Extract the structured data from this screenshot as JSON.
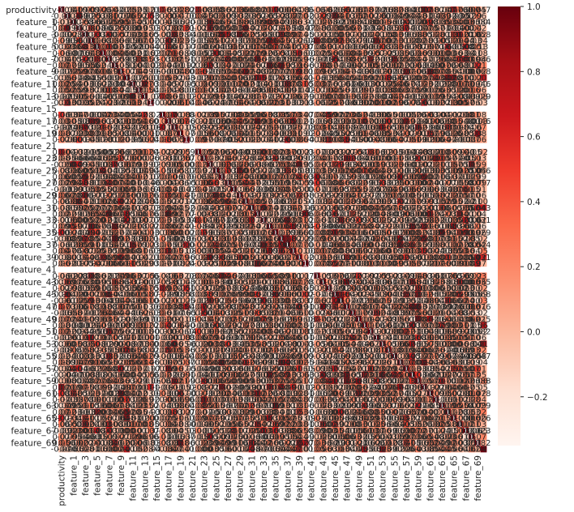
{
  "chart_data": {
    "type": "heatmap",
    "title": "",
    "xlabel": "",
    "ylabel": "",
    "row_labels": [
      "productivity",
      "0",
      "feature_1",
      "2",
      "feature_3",
      "4",
      "feature_5",
      "6",
      "feature_7",
      "8",
      "feature_9",
      "10",
      "feature_11",
      "12",
      "feature_13",
      "14",
      "feature_15",
      "16",
      "feature_17",
      "18",
      "feature_19",
      "20",
      "feature_21",
      "22",
      "feature_23",
      "24",
      "feature_25",
      "26",
      "feature_27",
      "28",
      "feature_29",
      "30",
      "feature_31",
      "32",
      "feature_33",
      "34",
      "feature_35",
      "36",
      "feature_37",
      "38",
      "feature_39",
      "40",
      "feature_41",
      "42",
      "feature_43",
      "44",
      "feature_45",
      "46",
      "feature_47",
      "48",
      "feature_49",
      "50",
      "feature_51",
      "52",
      "feature_53",
      "54",
      "feature_55",
      "56",
      "feature_57",
      "58",
      "feature_59",
      "60",
      "feature_61",
      "62",
      "feature_63",
      "64",
      "feature_65",
      "66",
      "feature_67",
      "68",
      "feature_69",
      "70"
    ],
    "x_tick_labels": [
      "productivity",
      "feature_1",
      "feature_3",
      "feature_5",
      "feature_7",
      "feature_9",
      "feature_11",
      "feature_13",
      "feature_15",
      "feature_17",
      "feature_19",
      "feature_21",
      "feature_23",
      "feature_25",
      "feature_27",
      "feature_29",
      "feature_31",
      "feature_33",
      "feature_35",
      "feature_37",
      "feature_39",
      "feature_41",
      "feature_43",
      "feature_45",
      "feature_47",
      "feature_49",
      "feature_51",
      "feature_53",
      "feature_55",
      "feature_57",
      "feature_59",
      "feature_61",
      "feature_63",
      "feature_65",
      "feature_67",
      "feature_69"
    ],
    "y_tick_labels": [
      "productivity",
      "feature_1",
      "feature_3",
      "feature_5",
      "feature_7",
      "feature_9",
      "feature_11",
      "feature_13",
      "feature_15",
      "feature_17",
      "feature_19",
      "feature_21",
      "feature_23",
      "feature_25",
      "feature_27",
      "feature_29",
      "feature_31",
      "feature_33",
      "feature_35",
      "feature_37",
      "feature_39",
      "feature_41",
      "feature_43",
      "feature_45",
      "feature_47",
      "feature_49",
      "feature_51",
      "feature_53",
      "feature_55",
      "feature_57",
      "feature_59",
      "feature_61",
      "feature_63",
      "feature_65",
      "feature_67",
      "feature_69"
    ],
    "last_column_labels": [
      "0.047",
      "",
      "0.084",
      "",
      "0.058",
      "",
      "0.13",
      "",
      "0.086",
      "",
      "0.068",
      "",
      "0.046",
      "",
      "0.029",
      "",
      "0.015",
      "",
      "0.046",
      "",
      "",
      "",
      "0.07",
      "",
      "",
      "",
      "0.056",
      "",
      "0.017",
      "",
      "",
      "",
      "0.043",
      "",
      "0.031",
      "",
      "0.029",
      "",
      "0.044",
      "",
      "0.031",
      "",
      "0.019",
      "",
      "0.035",
      "",
      "0.068",
      "",
      "0.076",
      "",
      "0.025",
      "",
      "0.032",
      "",
      "0.1",
      "",
      "0.047",
      "",
      "",
      "",
      "0.088",
      "",
      "0.078",
      "",
      "0.029",
      "",
      "0.026",
      "",
      "0.023",
      "",
      "0.082",
      "",
      "0.077",
      "",
      "0.11",
      "",
      "0.148",
      "",
      "0.14",
      "",
      "0.074",
      "",
      "0.165",
      "",
      "0.086",
      "",
      "0.075",
      "",
      "0.043",
      "",
      "0.089",
      "",
      "0.038",
      ""
    ],
    "empty_rows": [
      "feature_15",
      "feature_21",
      "feature_41"
    ],
    "value_range": [
      -0.35,
      1.0
    ],
    "colorbar_ticks": [
      "1.0",
      "0.8",
      "0.6",
      "0.4",
      "0.2",
      "0.0",
      "−0.2"
    ],
    "colormap": "Reds",
    "colors": {
      "low": "#fff5f0",
      "high": "#67000d"
    },
    "annotated": true
  }
}
